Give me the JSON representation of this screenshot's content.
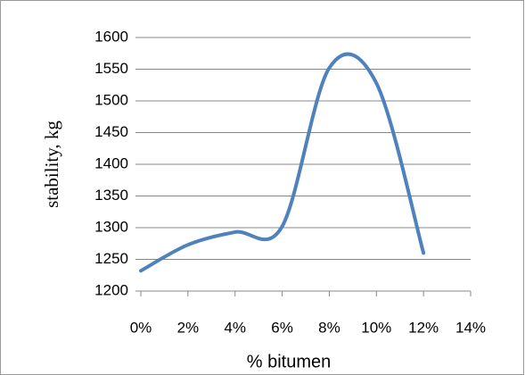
{
  "chart_data": {
    "type": "line",
    "x_label": "% bitumen",
    "y_label": "stability, kg",
    "x": [
      0,
      2,
      4,
      6,
      8,
      10,
      12
    ],
    "series": [
      {
        "name": "stability",
        "color": "#4f81bd",
        "values": [
          1232,
          1273,
          1293,
          1302,
          1552,
          1528,
          1260
        ]
      }
    ],
    "xlim": [
      0,
      14
    ],
    "xticks": [
      {
        "value": 0,
        "label": "0%"
      },
      {
        "value": 2,
        "label": "2%"
      },
      {
        "value": 4,
        "label": "4%"
      },
      {
        "value": 6,
        "label": "6%"
      },
      {
        "value": 8,
        "label": "8%"
      },
      {
        "value": 10,
        "label": "10%"
      },
      {
        "value": 12,
        "label": "12%"
      },
      {
        "value": 14,
        "label": "14%"
      }
    ],
    "ylim": [
      1200,
      1600
    ],
    "yticks": [
      1200,
      1250,
      1300,
      1350,
      1400,
      1450,
      1500,
      1550,
      1600
    ],
    "grid": true,
    "smooth": true
  }
}
